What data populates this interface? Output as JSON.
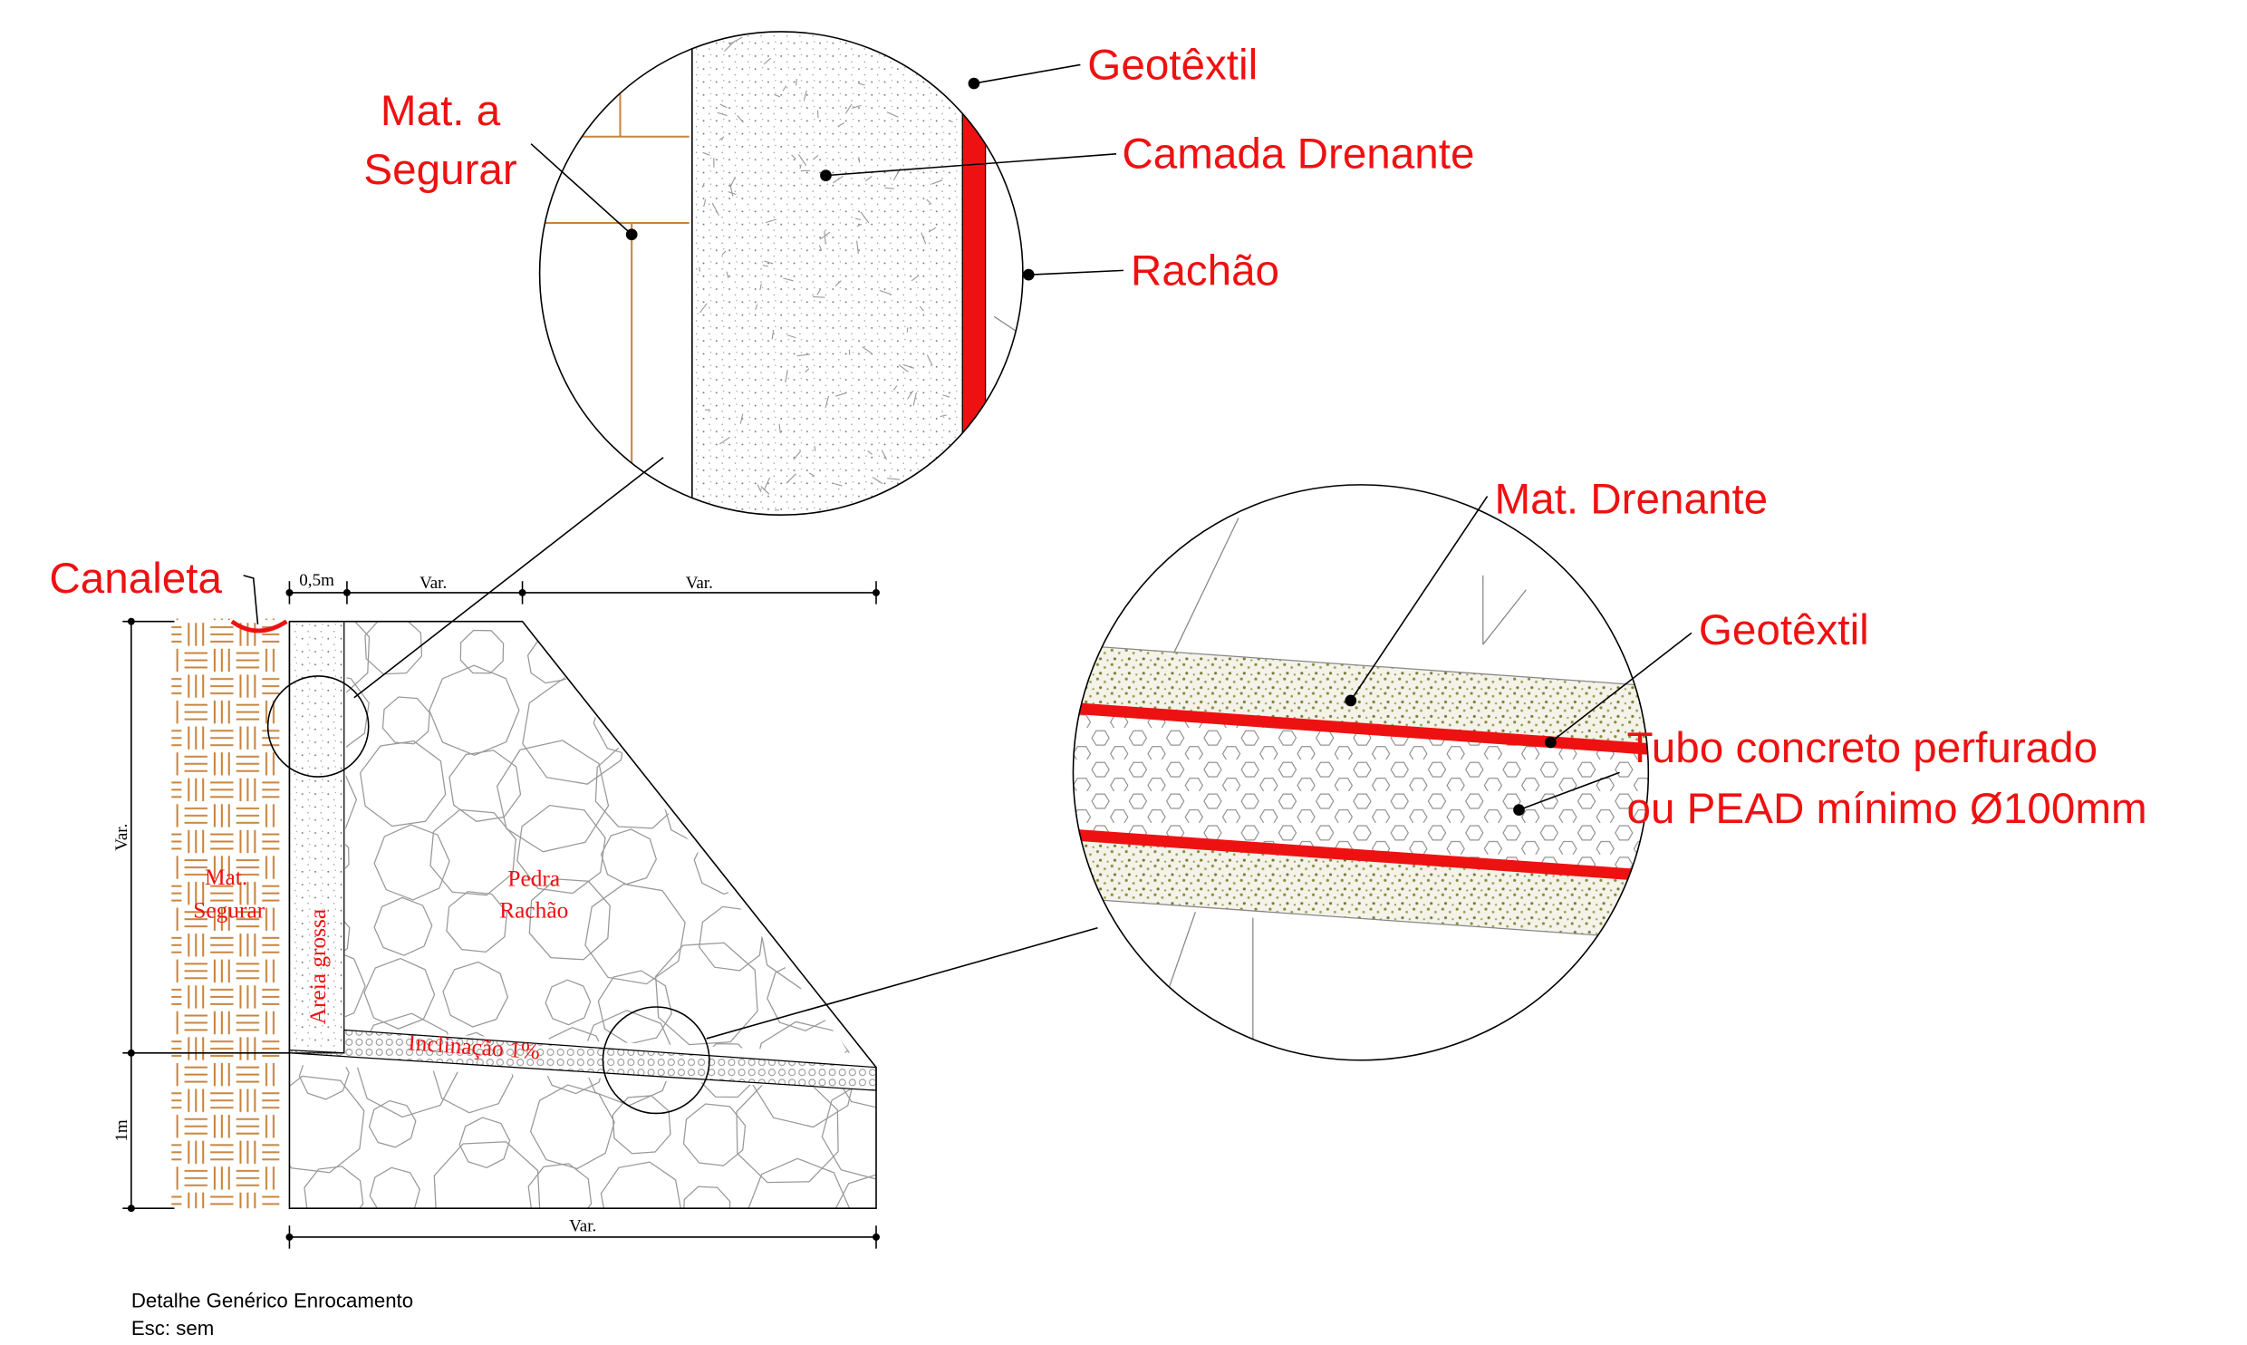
{
  "labels": {
    "mat_a_segurar": [
      "Mat. a",
      "Segurar"
    ],
    "geotextil_top": "Geotêxtil",
    "camada_drenante": "Camada Drenante",
    "rachao": "Rachão",
    "canaleta": "Canaleta",
    "mat_drenante": "Mat. Drenante",
    "geotextil_right": "Geotêxtil",
    "tubo": [
      "Tubo concreto perfurado",
      "ou PEAD mínimo Ø100mm"
    ]
  },
  "section": {
    "mat_segurar": [
      "Mat.",
      "Segurar"
    ],
    "areia_grossa": "Areia grossa",
    "pedra_rachao": [
      "Pedra",
      "Rachão"
    ],
    "inclinacao": "Inclinação 1%"
  },
  "dimensions": {
    "top": [
      "0,5m",
      "Var.",
      "Var."
    ],
    "left": [
      "Var.",
      "1m"
    ],
    "bottom": "Var."
  },
  "footer": {
    "title": "Detalhe Genérico Enrocamento",
    "scale": "Esc: sem"
  }
}
